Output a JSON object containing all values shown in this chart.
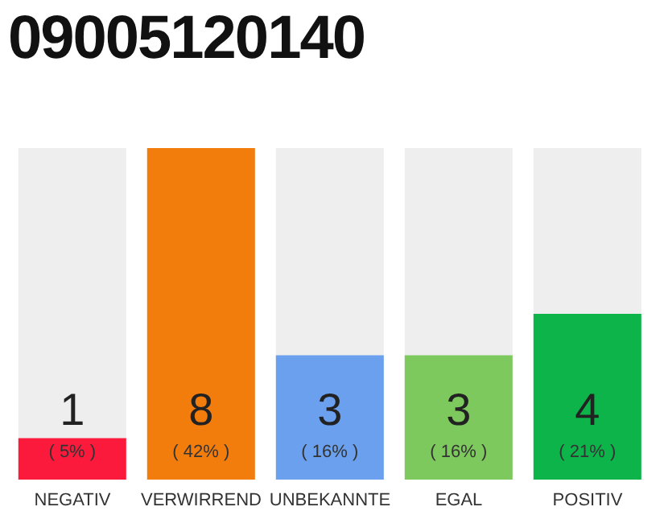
{
  "chart_data": {
    "type": "bar",
    "title": "09005120140",
    "categories": [
      "NEGATIV",
      "VERWIRREND",
      "UNBEKANNTE",
      "EGAL",
      "POSITIV"
    ],
    "values": [
      1,
      8,
      3,
      3,
      4
    ],
    "colors": [
      "#fb1a3c",
      "#f27d0c",
      "#6aa0ed",
      "#7dc95e",
      "#0db44a"
    ],
    "value_labels": [
      "1",
      "8",
      "3",
      "3",
      "4"
    ],
    "annotations": [
      "( 5% )",
      "( 42% )",
      "( 16% )",
      "( 16% )",
      "( 21% )"
    ]
  }
}
